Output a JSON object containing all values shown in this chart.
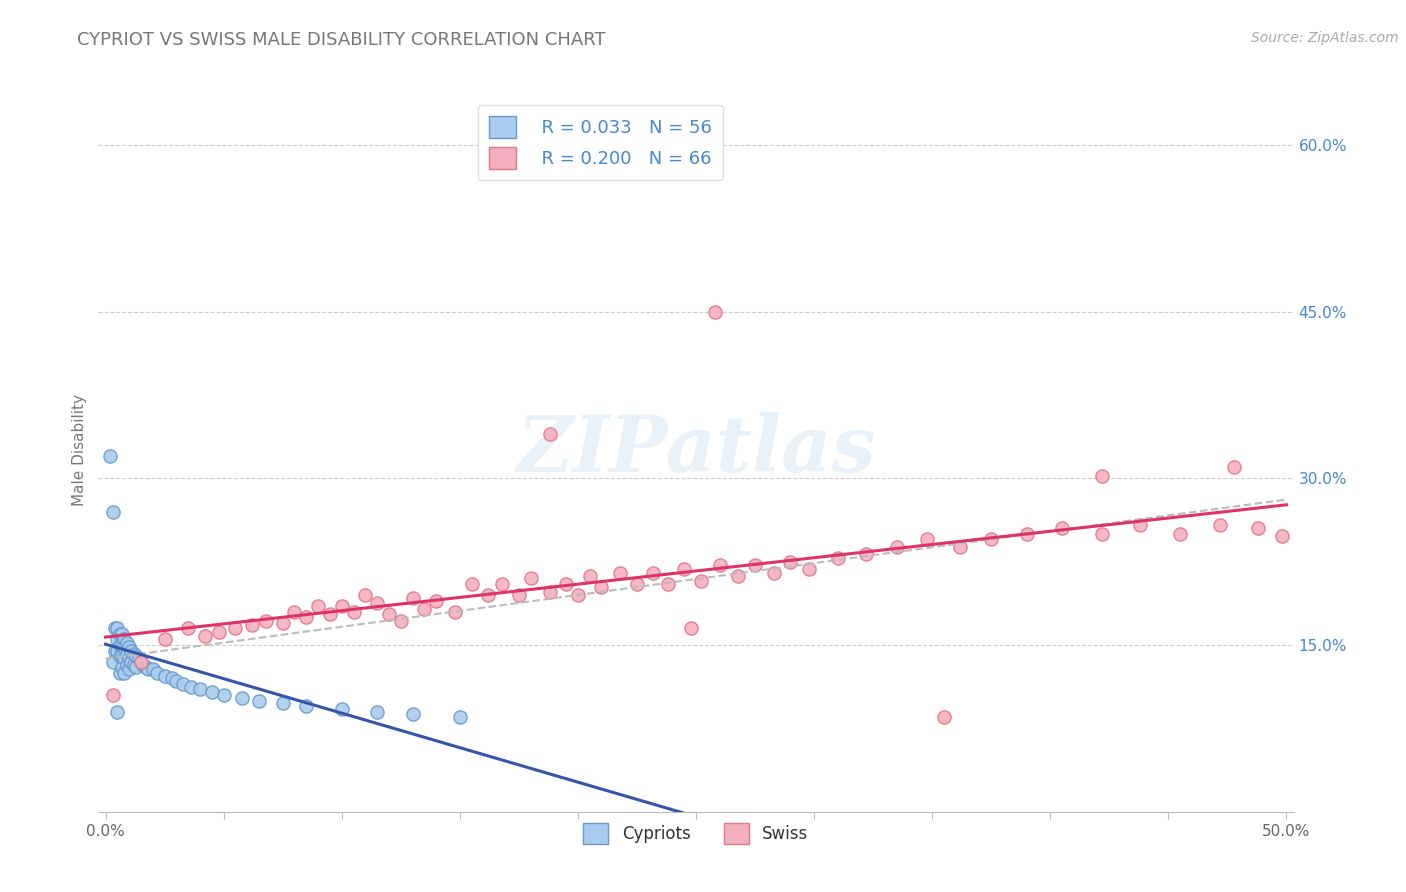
{
  "title": "CYPRIOT VS SWISS MALE DISABILITY CORRELATION CHART",
  "source": "Source: ZipAtlas.com",
  "ylabel": "Male Disability",
  "x_min": 0.0,
  "x_max": 0.5,
  "y_min": 0.0,
  "y_max": 0.65,
  "x_ticks": [
    0.0,
    0.05,
    0.1,
    0.15,
    0.2,
    0.25,
    0.3,
    0.35,
    0.4,
    0.45,
    0.5
  ],
  "x_tick_labels_show": [
    "0.0%",
    "",
    "",
    "",
    "",
    "",
    "",
    "",
    "",
    "",
    "50.0%"
  ],
  "y_ticks": [
    0.15,
    0.3,
    0.45,
    0.6
  ],
  "y_tick_labels": [
    "15.0%",
    "30.0%",
    "45.0%",
    "60.0%"
  ],
  "legend_labels": [
    "Cypriots",
    "Swiss"
  ],
  "cypriot_R": 0.033,
  "cypriot_N": 56,
  "swiss_R": 0.2,
  "swiss_N": 66,
  "cypriot_color": "#aaccee",
  "swiss_color": "#f5b0c0",
  "cypriot_edge": "#6699cc",
  "swiss_edge": "#e07888",
  "trend_cypriot_color": "#3355aa",
  "trend_swiss_color": "#dd3366",
  "trend_combined_color": "#bbbbbb",
  "watermark": "ZIPatlas",
  "cypriot_x": [
    0.002,
    0.003,
    0.003,
    0.004,
    0.004,
    0.005,
    0.005,
    0.005,
    0.005,
    0.006,
    0.006,
    0.006,
    0.006,
    0.007,
    0.007,
    0.007,
    0.007,
    0.008,
    0.008,
    0.008,
    0.008,
    0.009,
    0.009,
    0.009,
    0.01,
    0.01,
    0.01,
    0.011,
    0.011,
    0.012,
    0.012,
    0.013,
    0.013,
    0.014,
    0.015,
    0.016,
    0.017,
    0.018,
    0.02,
    0.022,
    0.025,
    0.028,
    0.03,
    0.033,
    0.036,
    0.04,
    0.045,
    0.05,
    0.058,
    0.065,
    0.075,
    0.085,
    0.1,
    0.115,
    0.13,
    0.15
  ],
  "cypriot_y": [
    0.32,
    0.27,
    0.135,
    0.165,
    0.145,
    0.165,
    0.155,
    0.145,
    0.09,
    0.16,
    0.15,
    0.14,
    0.125,
    0.16,
    0.15,
    0.14,
    0.13,
    0.155,
    0.148,
    0.138,
    0.125,
    0.152,
    0.142,
    0.132,
    0.148,
    0.138,
    0.128,
    0.145,
    0.135,
    0.142,
    0.132,
    0.14,
    0.13,
    0.138,
    0.135,
    0.132,
    0.13,
    0.128,
    0.128,
    0.125,
    0.122,
    0.12,
    0.118,
    0.115,
    0.112,
    0.11,
    0.108,
    0.105,
    0.102,
    0.1,
    0.098,
    0.095,
    0.092,
    0.09,
    0.088,
    0.085
  ],
  "swiss_x": [
    0.003,
    0.015,
    0.025,
    0.035,
    0.042,
    0.048,
    0.055,
    0.062,
    0.068,
    0.075,
    0.08,
    0.085,
    0.09,
    0.095,
    0.1,
    0.105,
    0.11,
    0.115,
    0.12,
    0.125,
    0.13,
    0.135,
    0.14,
    0.148,
    0.155,
    0.162,
    0.168,
    0.175,
    0.18,
    0.188,
    0.195,
    0.2,
    0.205,
    0.21,
    0.218,
    0.225,
    0.232,
    0.238,
    0.245,
    0.252,
    0.26,
    0.268,
    0.275,
    0.283,
    0.29,
    0.298,
    0.31,
    0.322,
    0.335,
    0.348,
    0.362,
    0.375,
    0.39,
    0.405,
    0.422,
    0.438,
    0.455,
    0.472,
    0.488,
    0.498,
    0.188,
    0.258,
    0.478,
    0.355,
    0.422,
    0.248
  ],
  "swiss_y": [
    0.105,
    0.135,
    0.155,
    0.165,
    0.158,
    0.162,
    0.165,
    0.168,
    0.172,
    0.17,
    0.18,
    0.175,
    0.185,
    0.178,
    0.185,
    0.18,
    0.195,
    0.188,
    0.178,
    0.172,
    0.192,
    0.182,
    0.19,
    0.18,
    0.205,
    0.195,
    0.205,
    0.195,
    0.21,
    0.198,
    0.205,
    0.195,
    0.212,
    0.202,
    0.215,
    0.205,
    0.215,
    0.205,
    0.218,
    0.208,
    0.222,
    0.212,
    0.222,
    0.215,
    0.225,
    0.218,
    0.228,
    0.232,
    0.238,
    0.245,
    0.238,
    0.245,
    0.25,
    0.255,
    0.25,
    0.258,
    0.25,
    0.258,
    0.255,
    0.248,
    0.34,
    0.45,
    0.31,
    0.085,
    0.302,
    0.165
  ]
}
